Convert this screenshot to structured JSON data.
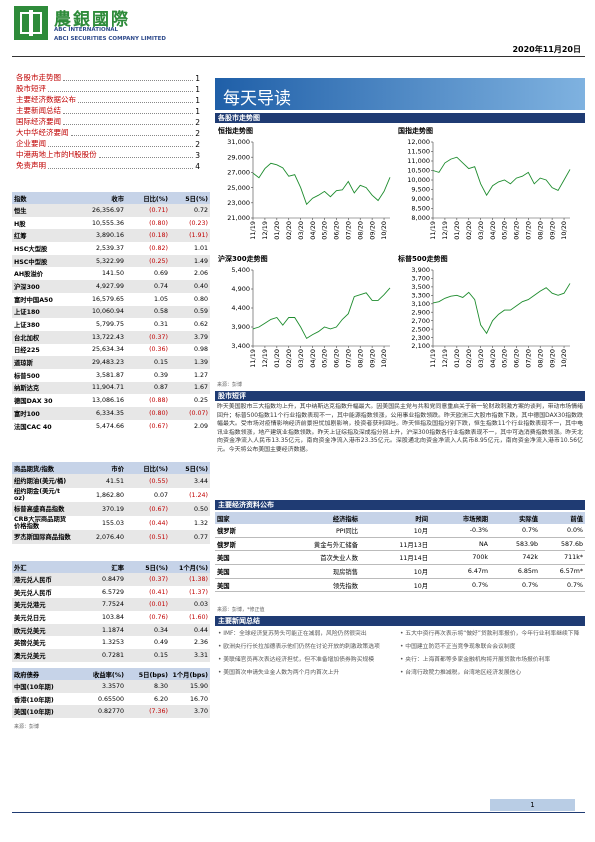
{
  "header": {
    "logo": "農銀國際",
    "company_en": "ABC INTERNATIONAL",
    "company_en2": "ABCI SECURITIES COMPANY LIMITED",
    "date": "2020年11月20日"
  },
  "toc": [
    {
      "title": "各股市走势图",
      "page": "1"
    },
    {
      "title": "股市短评",
      "page": "1"
    },
    {
      "title": "主要经济数据公布",
      "page": "1"
    },
    {
      "title": "主要新闻总结",
      "page": "1"
    },
    {
      "title": "国际经济要闻",
      "page": "2"
    },
    {
      "title": "大中华经济要闻",
      "page": "2"
    },
    {
      "title": "企业要闻",
      "page": "2"
    },
    {
      "title": "中港两地上市的H股股份",
      "page": "3"
    },
    {
      "title": "免责声明",
      "page": "4"
    }
  ],
  "banner_title": "每天导读",
  "charts_section": "各股市走势图",
  "chart_data": [
    {
      "type": "line",
      "title": "恒指走势图",
      "color": "#1e8c2e",
      "categories": [
        "11/19",
        null,
        "12/19",
        null,
        "01/20",
        null,
        "02/20",
        null,
        "03/20",
        null,
        "04/20",
        null,
        "05/20",
        null,
        "06/20",
        null,
        "07/20",
        null,
        "08/20",
        null,
        "09/20",
        null,
        "10/20",
        null
      ],
      "values": [
        26900,
        26300,
        27500,
        28200,
        28000,
        27600,
        26500,
        26700,
        25000,
        22800,
        23600,
        24000,
        24500,
        23800,
        24600,
        24700,
        25800,
        24300,
        25300,
        25000,
        24000,
        23300,
        24500,
        26357
      ],
      "ylim": [
        21000,
        31000
      ],
      "yticks": [
        {
          "value": 21000,
          "label": "21,000"
        },
        {
          "value": 23000,
          "label": "23,000"
        },
        {
          "value": 25000,
          "label": "25,000"
        },
        {
          "value": 27000,
          "label": "27,000"
        },
        {
          "value": 29000,
          "label": "29,000"
        },
        {
          "value": 31000,
          "label": "31,000"
        }
      ]
    },
    {
      "type": "line",
      "title": "国指走势图",
      "color": "#1e8c2e",
      "categories": [
        "11/19",
        null,
        "12/19",
        null,
        "01/20",
        null,
        "02/20",
        null,
        "03/20",
        null,
        "04/20",
        null,
        "05/20",
        null,
        "06/20",
        null,
        "07/20",
        null,
        "08/20",
        null,
        "09/20",
        null,
        "10/20",
        null
      ],
      "values": [
        10500,
        10400,
        10900,
        11100,
        11200,
        10900,
        10600,
        10700,
        9800,
        9200,
        9700,
        9900,
        10000,
        9800,
        10100,
        10200,
        10400,
        9800,
        10100,
        10000,
        9600,
        9450,
        10000,
        10556
      ],
      "ylim": [
        8000,
        12000
      ],
      "yticks": [
        {
          "value": 8000,
          "label": "8,000"
        },
        {
          "value": 8500,
          "label": "8,500"
        },
        {
          "value": 9000,
          "label": "9,000"
        },
        {
          "value": 9500,
          "label": "9,500"
        },
        {
          "value": 10000,
          "label": "10,000"
        },
        {
          "value": 10500,
          "label": "10,500"
        },
        {
          "value": 11000,
          "label": "11,000"
        },
        {
          "value": 11500,
          "label": "11,500"
        },
        {
          "value": 12000,
          "label": "12,000"
        }
      ]
    },
    {
      "type": "line",
      "title": "沪深300走势图",
      "color": "#1e8c2e",
      "categories": [
        "11/19",
        null,
        "12/19",
        null,
        "01/20",
        null,
        "02/20",
        null,
        "03/20",
        null,
        "04/20",
        null,
        "05/20",
        null,
        "06/20",
        null,
        "07/20",
        null,
        "08/20",
        null,
        "09/20",
        null,
        "10/20",
        null
      ],
      "values": [
        3850,
        3900,
        4000,
        4100,
        4150,
        3950,
        4150,
        4150,
        3900,
        3600,
        3700,
        3780,
        3900,
        3850,
        3900,
        4100,
        4250,
        4700,
        4750,
        4800,
        4600,
        4600,
        4750,
        4928
      ],
      "ylim": [
        3400,
        5400
      ],
      "yticks": [
        {
          "value": 3400,
          "label": "3,400"
        },
        {
          "value": 3900,
          "label": "3,900"
        },
        {
          "value": 4400,
          "label": "4,400"
        },
        {
          "value": 4900,
          "label": "4,900"
        },
        {
          "value": 5400,
          "label": "5,400"
        }
      ]
    },
    {
      "type": "line",
      "title": "标普500走势图",
      "color": "#1e8c2e",
      "categories": [
        "11/19",
        null,
        "12/19",
        null,
        "01/20",
        null,
        "02/20",
        null,
        "03/20",
        null,
        "04/20",
        null,
        "05/20",
        null,
        "06/20",
        null,
        "07/20",
        null,
        "08/20",
        null,
        "09/20",
        null,
        "10/20",
        null
      ],
      "values": [
        3120,
        3150,
        3230,
        3280,
        3300,
        3250,
        3370,
        3200,
        2600,
        2400,
        2700,
        2850,
        2950,
        2950,
        3050,
        3150,
        3200,
        3300,
        3400,
        3480,
        3350,
        3300,
        3350,
        3582
      ],
      "ylim": [
        2100,
        3900
      ],
      "yticks": [
        {
          "value": 2100,
          "label": "2,100"
        },
        {
          "value": 2300,
          "label": "2,300"
        },
        {
          "value": 2500,
          "label": "2,500"
        },
        {
          "value": 2700,
          "label": "2,700"
        },
        {
          "value": 2900,
          "label": "2,900"
        },
        {
          "value": 3100,
          "label": "3,100"
        },
        {
          "value": 3300,
          "label": "3,300"
        },
        {
          "value": 3500,
          "label": "3,500"
        },
        {
          "value": 3700,
          "label": "3,700"
        },
        {
          "value": 3900,
          "label": "3,900"
        }
      ]
    }
  ],
  "charts_source": "来源：彭博",
  "commentary": {
    "heading": "股市短评",
    "text": "昨天美国股市三大指数均上升，其中纳斯达克指数升幅最大。因美国民主党与共和党同意重启关于新一轮财政刺激方案的谈判，带动市场情绪回升；标普500指数11个行业指数表现不一，其中能源指数领涨，公用事业指数领跌。昨天欧洲三大股市指数下跌，其中德国DAX30指数跌幅最大。受市场对疫情影响经济前景担忧加剧影响，投资者获利回吐。昨天恒指及国指分别下跌，恒生指数11个行业指数表现不一，其中电讯业指数领涨，地产建筑业指数领跌。昨天上证综指及深成指分别上升，沪深300指数各行业指数表现不一，其中可选消费指数领涨。昨天北向资金净流入人民币13.35亿元，南向资金净流入港币23.35亿元。深股通北向资金净流入人民币8.95亿元，南向资金净流入港币10.56亿元。今天将公布美国主要经济数据。"
  },
  "index_table": {
    "columns": [
      "指数",
      "收市",
      "日比(%)",
      "5日(%)"
    ],
    "rows": [
      [
        "恒生",
        "26,356.97",
        "(0.71)",
        "0.72"
      ],
      [
        "H股",
        "10,555.36",
        "(0.80)",
        "(0.23)"
      ],
      [
        "红筹",
        "3,890.16",
        "(0.18)",
        "(1.91)"
      ],
      [
        "HSC大型股",
        "2,539.37",
        "(0.82)",
        "1.01"
      ],
      [
        "HSC中型股",
        "5,322.99",
        "(0.25)",
        "1.49"
      ],
      [
        "AH股溢价",
        "141.50",
        "0.69",
        "2.06"
      ],
      [
        "沪深300",
        "4,927.99",
        "0.74",
        "0.40"
      ],
      [
        "富时中国A50",
        "16,579.65",
        "1.05",
        "0.80"
      ],
      [
        "上证180",
        "10,060.94",
        "0.58",
        "0.59"
      ],
      [
        "上证380",
        "5,799.75",
        "0.31",
        "0.62"
      ],
      [
        "台北加权",
        "13,722.43",
        "(0.37)",
        "3.79"
      ],
      [
        "日经225",
        "25,634.34",
        "(0.36)",
        "0.98"
      ],
      [
        "道琼斯",
        "29,483.23",
        "0.15",
        "1.39"
      ],
      [
        "标普500",
        "3,581.87",
        "0.39",
        "1.27"
      ],
      [
        "纳斯达克",
        "11,904.71",
        "0.87",
        "1.67"
      ],
      [
        "德国DAX 30",
        "13,086.16",
        "(0.88)",
        "0.25"
      ],
      [
        "富时100",
        "6,334.35",
        "(0.80)",
        "(0.07)"
      ],
      [
        "法国CAC 40",
        "5,474.66",
        "(0.67)",
        "2.09"
      ]
    ]
  },
  "commodity_table": {
    "columns": [
      "商品期货/指数",
      "市价",
      "日比(%)",
      "5日(%)"
    ],
    "rows": [
      [
        "纽约期油(美元/桶)",
        "41.51",
        "(0.55)",
        "3.44"
      ],
      [
        "纽约期金(美元/t oz)",
        "1,862.80",
        "0.07",
        "(1.24)"
      ],
      [
        "标普高盛商品指数",
        "370.19",
        "(0.67)",
        "0.50"
      ],
      [
        "CRB大宗商品期货价格指数",
        "155.03",
        "(0.44)",
        "1.32"
      ],
      [
        "罗杰斯国际商品指数",
        "2,076.40",
        "(0.51)",
        "0.77"
      ]
    ]
  },
  "fx_table": {
    "columns": [
      "外汇",
      "汇率",
      "5日(%)",
      "1个月(%)"
    ],
    "rows": [
      [
        "港元兑人民币",
        "0.8479",
        "(0.37)",
        "(1.38)"
      ],
      [
        "美元兑人民币",
        "6.5729",
        "(0.41)",
        "(1.37)"
      ],
      [
        "美元兑港元",
        "7.7524",
        "(0.01)",
        "0.03"
      ],
      [
        "美元兑日元",
        "103.84",
        "(0.76)",
        "(1.60)"
      ],
      [
        "欧元兑美元",
        "1.1874",
        "0.34",
        "0.44"
      ],
      [
        "英镑兑美元",
        "1.3253",
        "0.49",
        "2.36"
      ],
      [
        "澳元兑美元",
        "0.7281",
        "0.15",
        "3.31"
      ]
    ]
  },
  "bond_table": {
    "columns": [
      "政府债券",
      "收益率(%)",
      "5日(bps)",
      "1个月(bps)"
    ],
    "rows": [
      [
        "中国(10年期)",
        "3.3570",
        "8.30",
        "15.90"
      ],
      [
        "香港(10年期)",
        "0.65500",
        "6.20",
        "16.70"
      ],
      [
        "美国(10年期)",
        "0.82770",
        "(7.36)",
        "3.70"
      ]
    ]
  },
  "tables_source": "来源：彭博",
  "econ_table": {
    "heading": "主要经济资料公布",
    "columns": [
      "国家",
      "经济指标",
      "时间",
      "市场预期",
      "实际值",
      "前值"
    ],
    "rows": [
      [
        "俄罗斯",
        "PPI同比",
        "10月",
        "-0.3%",
        "0.7%",
        "0.0%"
      ],
      [
        "俄罗斯",
        "黄金与外汇储备",
        "11月13日",
        "NA",
        "583.9b",
        "587.6b"
      ],
      [
        "美国",
        "首次失业人数",
        "11月14日",
        "700k",
        "742k",
        "711k*"
      ],
      [
        "美国",
        "现房销售",
        "10月",
        "6.47m",
        "6.85m",
        "6.57m*"
      ],
      [
        "美国",
        "领先指数",
        "10月",
        "0.7%",
        "0.7%",
        "0.7%"
      ]
    ]
  },
  "econ_source": "来源：彭博，*修正值",
  "news": {
    "heading": "主要新闻总结",
    "left": [
      "IMF：全球经济复苏势头可能正在减弱，风险仍然很突出",
      "欧洲央行行长拉加德表示他们仍然在讨论开放的刺激政策选项",
      "美联储官员再次表达经济担忧，但不准备增加债券购买规模",
      "美国首次申请失业金人数为两个月内首次上升"
    ],
    "right": [
      "五大中资行再次表示将“做好”贷款利率报价，今年行业利率继续下降",
      "中国建立防范不正当竞争现象联合会议制度",
      "央行：上海首都等多家金融机构将开展贷款市场报价利率",
      "台湾行政院力推减税，台湾地区经济发展信心"
    ]
  },
  "page_number": "1"
}
